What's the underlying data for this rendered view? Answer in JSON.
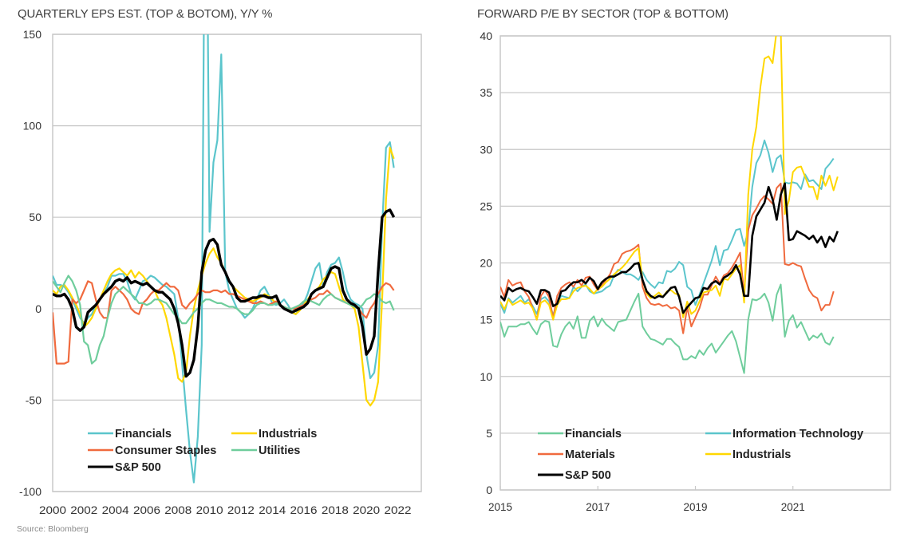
{
  "source_note": "Source: Bloomberg",
  "colors": {
    "financials": "#5bc5cc",
    "industrials": "#ffd700",
    "consumer_staples": "#f06a3e",
    "utilities": "#6fcd9c",
    "materials": "#f06a3e",
    "information_technology": "#5bc5cc",
    "sp500": "#000000",
    "grid": "#c8c8c8",
    "axis_text": "#333333"
  },
  "chart_data": [
    {
      "type": "line",
      "title": "QUARTERLY EPS EST. (TOP & BOTOM), Y/Y %",
      "xlabel": "",
      "ylabel": "",
      "xlim": [
        2000,
        2023.5
      ],
      "ylim": [
        -100,
        150
      ],
      "yticks": [
        150,
        100,
        50,
        0,
        -50,
        -100
      ],
      "xticks": [
        "2000",
        "2002",
        "2004",
        "2006",
        "2008",
        "2010",
        "2012",
        "2014",
        "2016",
        "2018",
        "2020",
        "2022"
      ],
      "grid": true,
      "legend_position": "bottom-left",
      "x_start": 2000,
      "x_step": 0.25,
      "series": [
        {
          "name": "Financials",
          "color_key": "financials",
          "width": 2.2,
          "values": [
            18,
            13,
            13,
            12,
            9,
            5,
            0,
            -5,
            -8,
            -5,
            -3,
            2,
            5,
            8,
            12,
            18,
            18,
            19,
            19,
            15,
            8,
            5,
            10,
            15,
            16,
            18,
            17,
            15,
            13,
            12,
            10,
            8,
            -5,
            -30,
            -55,
            -78,
            -95,
            -70,
            -20,
            300,
            42,
            80,
            92,
            139,
            20,
            10,
            5,
            0,
            -2,
            -5,
            -3,
            0,
            5,
            10,
            12,
            8,
            3,
            2,
            3,
            5,
            2,
            -2,
            -3,
            0,
            3,
            8,
            15,
            22,
            25,
            12,
            20,
            24,
            25,
            28,
            20,
            10,
            5,
            3,
            2,
            0,
            -25,
            -38,
            -35,
            -20,
            45,
            88,
            91,
            77
          ]
        },
        {
          "name": "Industrials",
          "color_key": "industrials",
          "width": 2.2,
          "values": [
            10,
            8,
            12,
            13,
            10,
            6,
            2,
            -3,
            -10,
            -8,
            -5,
            0,
            5,
            10,
            15,
            19,
            21,
            22,
            20,
            18,
            21,
            17,
            20,
            18,
            15,
            12,
            10,
            5,
            2,
            -5,
            -15,
            -25,
            -38,
            -40,
            -35,
            -15,
            0,
            10,
            18,
            25,
            30,
            33,
            28,
            25,
            20,
            15,
            12,
            10,
            8,
            6,
            5,
            4,
            5,
            6,
            8,
            7,
            5,
            3,
            2,
            0,
            0,
            -2,
            -3,
            -1,
            2,
            5,
            8,
            10,
            12,
            16,
            18,
            20,
            19,
            12,
            5,
            3,
            2,
            0,
            -10,
            -30,
            -50,
            -53,
            -50,
            -40,
            5,
            60,
            88,
            82
          ]
        },
        {
          "name": "Consumer Staples",
          "color_key": "consumer_staples",
          "width": 2.2,
          "values": [
            -2,
            -30,
            -30,
            -30,
            -29,
            5,
            3,
            5,
            10,
            15,
            14,
            5,
            -2,
            -5,
            -5,
            10,
            12,
            10,
            8,
            5,
            0,
            -2,
            -3,
            3,
            5,
            8,
            10,
            10,
            12,
            14,
            12,
            12,
            10,
            2,
            0,
            3,
            5,
            8,
            10,
            9,
            9,
            10,
            10,
            9,
            10,
            8,
            8,
            7,
            6,
            5,
            4,
            3,
            3,
            4,
            3,
            2,
            3,
            4,
            2,
            1,
            0,
            0,
            0,
            1,
            2,
            3,
            5,
            6,
            8,
            8,
            10,
            8,
            6,
            5,
            4,
            3,
            3,
            2,
            0,
            -3,
            -5,
            0,
            3,
            8,
            12,
            14,
            13,
            10
          ]
        },
        {
          "name": "Utilities",
          "color_key": "utilities",
          "width": 2.2,
          "values": [
            15,
            12,
            9,
            14,
            18,
            15,
            10,
            2,
            -18,
            -20,
            -30,
            -28,
            -20,
            -15,
            -5,
            3,
            8,
            10,
            12,
            10,
            8,
            6,
            3,
            3,
            2,
            3,
            5,
            5,
            4,
            3,
            0,
            -3,
            -5,
            -8,
            -8,
            -5,
            -2,
            0,
            3,
            5,
            5,
            4,
            3,
            3,
            2,
            1,
            1,
            0,
            -2,
            -3,
            -3,
            -1,
            2,
            3,
            3,
            2,
            2,
            3,
            2,
            1,
            0,
            0,
            1,
            2,
            4,
            5,
            4,
            3,
            2,
            5,
            7,
            8,
            6,
            5,
            4,
            3,
            2,
            1,
            0,
            2,
            5,
            6,
            8,
            7,
            4,
            3,
            4,
            -1
          ]
        },
        {
          "name": "S&P 500",
          "color_key": "sp500",
          "width": 3.4,
          "values": [
            8,
            7,
            7,
            8,
            5,
            0,
            -10,
            -12,
            -10,
            -2,
            0,
            2,
            5,
            8,
            10,
            12,
            15,
            16,
            15,
            17,
            14,
            15,
            14,
            13,
            14,
            12,
            10,
            9,
            9,
            7,
            5,
            0,
            -8,
            -20,
            -37,
            -35,
            -28,
            -10,
            20,
            32,
            37,
            38,
            35,
            24,
            20,
            15,
            12,
            6,
            4,
            4,
            5,
            6,
            6,
            7,
            7,
            6,
            6,
            7,
            2,
            0,
            -1,
            -2,
            -1,
            0,
            1,
            3,
            8,
            10,
            11,
            12,
            17,
            22,
            23,
            22,
            10,
            5,
            3,
            2,
            0,
            -10,
            -25,
            -22,
            -15,
            20,
            50,
            53,
            54,
            50
          ]
        }
      ]
    },
    {
      "type": "line",
      "title": "FORWARD P/E BY SECTOR (TOP & BOTTOM)",
      "xlabel": "",
      "ylabel": "",
      "xlim": [
        2015,
        2023
      ],
      "ylim": [
        0,
        40
      ],
      "yticks": [
        40,
        35,
        30,
        25,
        20,
        15,
        10,
        5,
        0
      ],
      "xticks": [
        "2015",
        "2017",
        "2019",
        "2021"
      ],
      "grid": true,
      "legend_position": "bottom-left",
      "x_start": 2015,
      "x_step": 0.0833333,
      "series": [
        {
          "name": "Financials",
          "color_key": "financials_right",
          "color": "#6fcd9c",
          "width": 2,
          "values": [
            14.8,
            13.5,
            14.4,
            14.4,
            14.4,
            14.6,
            14.6,
            14.8,
            14.2,
            13.7,
            14.6,
            14.9,
            14.8,
            12.7,
            12.6,
            13.7,
            14.4,
            14.8,
            14.2,
            15.3,
            13.4,
            13.4,
            14.9,
            15.3,
            14.4,
            15.1,
            14.6,
            14.3,
            14.0,
            14.8,
            14.9,
            15.0,
            15.8,
            16.6,
            17.3,
            14.4,
            13.8,
            13.3,
            13.2,
            13.0,
            12.8,
            13.3,
            13.3,
            12.9,
            12.6,
            11.5,
            11.5,
            11.8,
            11.6,
            12.3,
            11.9,
            12.5,
            12.9,
            12.1,
            12.6,
            13.1,
            13.6,
            14.0,
            13.1,
            11.7,
            10.3,
            15.0,
            16.8,
            16.7,
            16.9,
            17.3,
            16.5,
            14.9,
            17.2,
            18.1,
            13.5,
            14.9,
            15.4,
            14.3,
            14.8,
            14.0,
            13.2,
            13.6,
            13.4,
            13.8,
            13.0,
            12.8,
            13.5
          ]
        },
        {
          "name": "Information Technology",
          "color_key": "information_technology",
          "width": 2,
          "values": [
            16.4,
            15.6,
            16.9,
            16.5,
            16.8,
            17.1,
            16.5,
            16.8,
            16.2,
            15.5,
            16.8,
            17.0,
            16.6,
            15.4,
            16.5,
            17.1,
            17.0,
            16.9,
            17.9,
            17.5,
            17.9,
            18.1,
            17.5,
            17.3,
            17.4,
            17.5,
            17.8,
            18.0,
            18.9,
            19.4,
            19.2,
            19.0,
            19.0,
            18.8,
            18.5,
            19.2,
            18.5,
            18.1,
            17.8,
            18.3,
            18.2,
            19.3,
            19.2,
            19.5,
            20.1,
            19.8,
            17.9,
            17.6,
            16.3,
            17.2,
            18.2,
            19.2,
            20.2,
            21.5,
            19.8,
            21.1,
            21.2,
            22.0,
            22.9,
            23.0,
            21.5,
            22.8,
            26.7,
            28.8,
            29.5,
            30.8,
            29.7,
            28.0,
            29.2,
            29.5,
            27.1,
            27.0,
            27.1,
            27.0,
            26.5,
            27.8,
            27.2,
            27.3,
            26.9,
            26.5,
            28.3,
            28.7,
            29.2
          ]
        },
        {
          "name": "Materials",
          "color_key": "materials",
          "width": 2,
          "values": [
            17.9,
            17.0,
            18.5,
            18.0,
            18.2,
            18.3,
            17.5,
            17.0,
            16.0,
            15.0,
            17.1,
            17.6,
            17.0,
            15.1,
            17.1,
            17.8,
            18.1,
            18.3,
            17.9,
            18.5,
            18.0,
            18.7,
            18.8,
            18.1,
            17.6,
            18.0,
            18.5,
            19.0,
            19.9,
            20.1,
            20.8,
            21.0,
            21.1,
            21.3,
            21.6,
            17.9,
            16.9,
            16.4,
            16.3,
            16.4,
            16.2,
            16.3,
            16.0,
            16.1,
            15.8,
            13.8,
            16.1,
            14.4,
            15.2,
            16.0,
            17.2,
            17.2,
            18.0,
            18.8,
            18.2,
            18.9,
            19.1,
            19.6,
            20.2,
            20.9,
            17.2,
            22.9,
            24.2,
            24.8,
            25.5,
            25.9,
            25.6,
            25.2,
            26.6,
            27.0,
            19.9,
            19.8,
            20.0,
            19.8,
            19.7,
            18.6,
            17.6,
            17.1,
            16.9,
            15.8,
            16.3,
            16.3,
            17.5
          ]
        },
        {
          "name": "Industrials",
          "color_key": "industrials",
          "width": 2,
          "values": [
            16.6,
            15.9,
            16.8,
            16.3,
            16.5,
            16.7,
            16.4,
            16.5,
            16.0,
            15.0,
            16.5,
            16.7,
            16.3,
            15.0,
            16.3,
            16.8,
            16.8,
            16.9,
            17.5,
            17.8,
            17.9,
            18.0,
            17.7,
            17.3,
            17.7,
            17.9,
            18.3,
            18.6,
            19.0,
            19.3,
            19.6,
            20.0,
            20.5,
            21.0,
            21.3,
            18.5,
            17.3,
            16.9,
            17.1,
            17.4,
            17.0,
            17.5,
            17.6,
            17.3,
            17.2,
            15.2,
            16.6,
            15.5,
            15.8,
            16.6,
            17.4,
            17.5,
            17.6,
            18.0,
            17.1,
            18.6,
            18.5,
            19.0,
            19.5,
            19.8,
            16.5,
            26.0,
            30.0,
            32.0,
            35.5,
            38.0,
            38.2,
            37.6,
            40.5,
            40.5,
            24.3,
            25.5,
            28.0,
            28.4,
            28.5,
            27.6,
            26.7,
            26.7,
            25.6,
            27.7,
            26.8,
            27.7,
            26.4,
            27.6
          ]
        },
        {
          "name": "S&P 500",
          "color_key": "sp500",
          "width": 2.6,
          "values": [
            17.1,
            16.7,
            17.8,
            17.5,
            17.7,
            17.8,
            17.6,
            17.5,
            17.0,
            16.4,
            17.6,
            17.6,
            17.4,
            16.2,
            16.4,
            17.5,
            17.6,
            18.0,
            18.3,
            18.3,
            18.5,
            18.2,
            18.7,
            18.4,
            17.7,
            18.3,
            18.6,
            18.8,
            18.8,
            19.0,
            19.2,
            19.2,
            19.5,
            19.9,
            20.0,
            18.5,
            17.5,
            17.1,
            16.9,
            17.1,
            17.0,
            17.4,
            17.8,
            17.9,
            17.0,
            15.6,
            16.1,
            16.5,
            16.9,
            17.0,
            17.8,
            17.7,
            18.2,
            18.4,
            18.1,
            18.7,
            18.9,
            19.2,
            19.8,
            19.0,
            17.1,
            17.1,
            22.4,
            24.1,
            24.7,
            25.3,
            26.7,
            25.6,
            23.8,
            26.0,
            27.0,
            22.0,
            22.1,
            22.8,
            22.6,
            22.4,
            22.1,
            22.4,
            21.8,
            22.3,
            21.4,
            22.3,
            21.9,
            22.8
          ]
        }
      ]
    }
  ]
}
